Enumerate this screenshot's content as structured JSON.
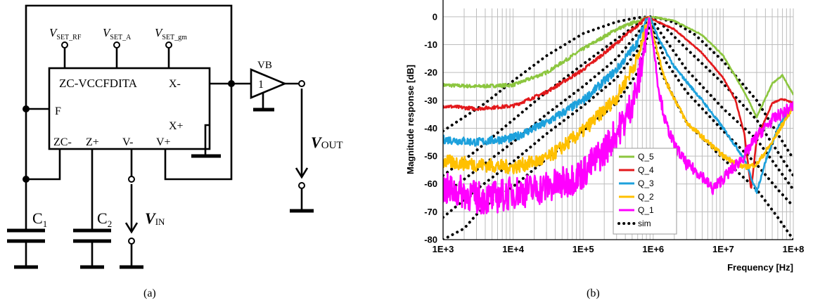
{
  "panel_a": {
    "caption": "(a)",
    "block_label": "ZC-VCCFDITA",
    "pins": {
      "x_minus": "X-",
      "x_plus": "X+",
      "f": "F",
      "zc_minus": "ZC-",
      "z_plus": "Z+",
      "v_minus": "V-",
      "v_plus": "V+"
    },
    "terminals": {
      "vset_rf": {
        "main": "V",
        "sub": "SET_RF"
      },
      "vset_a": {
        "main": "V",
        "sub": "SET_A"
      },
      "vset_gm": {
        "main": "V",
        "sub": "SET_gm"
      }
    },
    "buffer_label": "VB",
    "buffer_gain": "1",
    "capacitors": [
      {
        "main": "C",
        "sub": "1"
      },
      {
        "main": "C",
        "sub": "2"
      }
    ],
    "vin": {
      "main": "V",
      "sub": "IN"
    },
    "vout": {
      "main": "V",
      "sub": "OUT"
    }
  },
  "panel_b": {
    "caption": "(b)"
  },
  "chart_data": {
    "type": "line",
    "title": "",
    "xlabel": "Frequency [Hz]",
    "ylabel": "Magnitude response [dB]",
    "xscale": "log",
    "xlim": [
      1000,
      100000000
    ],
    "ylim": [
      -80,
      5
    ],
    "x_ticks": [
      1000,
      10000,
      100000,
      1000000,
      10000000,
      100000000
    ],
    "x_tick_labels": [
      "1E+3",
      "1E+4",
      "1E+5",
      "1E+6",
      "1E+7",
      "1E+8"
    ],
    "y_ticks": [
      0,
      -10,
      -20,
      -30,
      -40,
      -50,
      -60,
      -70,
      -80
    ],
    "y_tick_labels": [
      "0",
      "-10",
      "-20",
      "-30",
      "-40",
      "-50",
      "-60",
      "-70",
      "-80"
    ],
    "grid": true,
    "legend_position": "bottom-center",
    "series": [
      {
        "name": "Q_5",
        "color": "#8cc63f",
        "style": "solid",
        "noise": 0.6,
        "x": [
          1000,
          3000,
          10000,
          30000,
          100000,
          300000,
          600000,
          1000000,
          2000000,
          5000000,
          10000000,
          20000000,
          30000000,
          50000000,
          70000000,
          100000000
        ],
        "y": [
          -24.5,
          -25,
          -24.5,
          -20,
          -11.5,
          -4.5,
          -1.5,
          0,
          -1.5,
          -6.5,
          -14,
          -27,
          -36,
          -24,
          -21,
          -28
        ]
      },
      {
        "name": "Q_4",
        "color": "#e3191c",
        "style": "solid",
        "noise": 0.6,
        "x": [
          1000,
          3000,
          10000,
          30000,
          100000,
          300000,
          600000,
          850000,
          1000000,
          2000000,
          5000000,
          10000000,
          15000000,
          20000000,
          25000000,
          30000000,
          50000000,
          70000000,
          100000000
        ],
        "y": [
          -32,
          -33,
          -32,
          -27,
          -19,
          -9.5,
          -3,
          0,
          -1,
          -4.5,
          -13,
          -22,
          -30,
          -42,
          -62,
          -44,
          -31,
          -29.5,
          -31
        ]
      },
      {
        "name": "Q_3",
        "color": "#1da1dc",
        "style": "solid",
        "noise": 1.5,
        "x": [
          1000,
          3000,
          10000,
          30000,
          100000,
          300000,
          600000,
          800000,
          900000,
          1200000,
          2000000,
          5000000,
          10000000,
          20000000,
          30000000,
          40000000,
          60000000,
          100000000
        ],
        "y": [
          -44,
          -45,
          -43.5,
          -38,
          -30,
          -19,
          -9,
          -1,
          0,
          -8,
          -18,
          -30,
          -40,
          -51,
          -63,
          -52,
          -40,
          -31
        ]
      },
      {
        "name": "Q_2",
        "color": "#ffc000",
        "style": "solid",
        "noise": 2.5,
        "x": [
          1000,
          3000,
          10000,
          30000,
          100000,
          300000,
          600000,
          800000,
          880000,
          1000000,
          1500000,
          3000000,
          10000000,
          20000000,
          30000000,
          50000000,
          100000000
        ],
        "y": [
          -52,
          -53,
          -54,
          -51,
          -41,
          -29,
          -15,
          -4,
          0,
          -7,
          -23,
          -38,
          -50,
          -54,
          -53,
          -45,
          -32
        ]
      },
      {
        "name": "Q_1",
        "color": "#ff00ff",
        "style": "solid",
        "noise": 6,
        "x": [
          1000,
          2000,
          3000,
          5000,
          10000,
          20000,
          50000,
          100000,
          200000,
          400000,
          600000,
          800000,
          880000,
          1000000,
          1200000,
          1500000,
          2000000,
          3000000,
          5000000,
          7000000,
          10000000,
          20000000,
          30000000,
          50000000,
          100000000
        ],
        "y": [
          -62,
          -63,
          -65,
          -65,
          -63,
          -62,
          -60,
          -56,
          -48,
          -37,
          -25,
          -7,
          0,
          -10,
          -26,
          -38,
          -46,
          -53,
          -57,
          -62,
          -58,
          -50,
          -43,
          -37,
          -32
        ]
      },
      {
        "name": "sim",
        "color": "#000000",
        "style": "dotted",
        "noise": 0,
        "x": [
          1000,
          4000,
          10000,
          30000,
          100000,
          300000,
          600000,
          900000,
          1200000,
          2000000,
          4000000,
          10000000,
          30000000,
          100000000
        ],
        "y": [
          -41,
          -31,
          -23,
          -14,
          -6,
          -1.8,
          -0.3,
          0,
          -0.5,
          -2,
          -6.5,
          -16,
          -30,
          -51
        ]
      },
      {
        "name": "",
        "color": "#000000",
        "style": "dotted",
        "noise": 0,
        "x": [
          1000,
          3000,
          10000,
          30000,
          100000,
          300000,
          600000,
          900000,
          1300000,
          3000000,
          10000000,
          30000000,
          100000000
        ],
        "y": [
          -57,
          -48,
          -37,
          -27,
          -17,
          -8,
          -2.5,
          0,
          -2.5,
          -11.5,
          -24,
          -37,
          -57
        ]
      },
      {
        "name": "",
        "color": "#000000",
        "style": "dotted",
        "noise": 0,
        "x": [
          1000,
          3000,
          10000,
          30000,
          100000,
          300000,
          600000,
          900000,
          1300000,
          3000000,
          10000000,
          30000000,
          100000000
        ],
        "y": [
          -64,
          -55,
          -45,
          -35,
          -25,
          -15,
          -6,
          0,
          -6,
          -19,
          -33,
          -44,
          -62
        ]
      },
      {
        "name": "",
        "color": "#000000",
        "style": "dotted",
        "noise": 0,
        "x": [
          1000,
          3000,
          10000,
          30000,
          100000,
          300000,
          600000,
          850000,
          900000,
          1000000,
          1500000,
          3000000,
          10000000,
          30000000,
          60000000,
          100000000
        ],
        "y": [
          -72,
          -62,
          -52,
          -42,
          -32,
          -22,
          -12,
          -3,
          0,
          -4,
          -16,
          -27,
          -41,
          -53,
          -62,
          -68
        ]
      },
      {
        "name": "",
        "color": "#000000",
        "style": "dotted",
        "noise": 0,
        "x": [
          1000,
          2000,
          3000,
          5000,
          10000,
          30000,
          100000,
          300000,
          600000,
          850000,
          900000,
          1000000,
          1300000,
          3000000,
          10000000,
          30000000,
          60000000,
          100000000
        ],
        "y": [
          -80,
          -76,
          -71,
          -66,
          -61,
          -51,
          -41,
          -31,
          -20,
          -6,
          0,
          -6,
          -20,
          -38,
          -51,
          -62,
          -72,
          -80
        ]
      }
    ]
  }
}
